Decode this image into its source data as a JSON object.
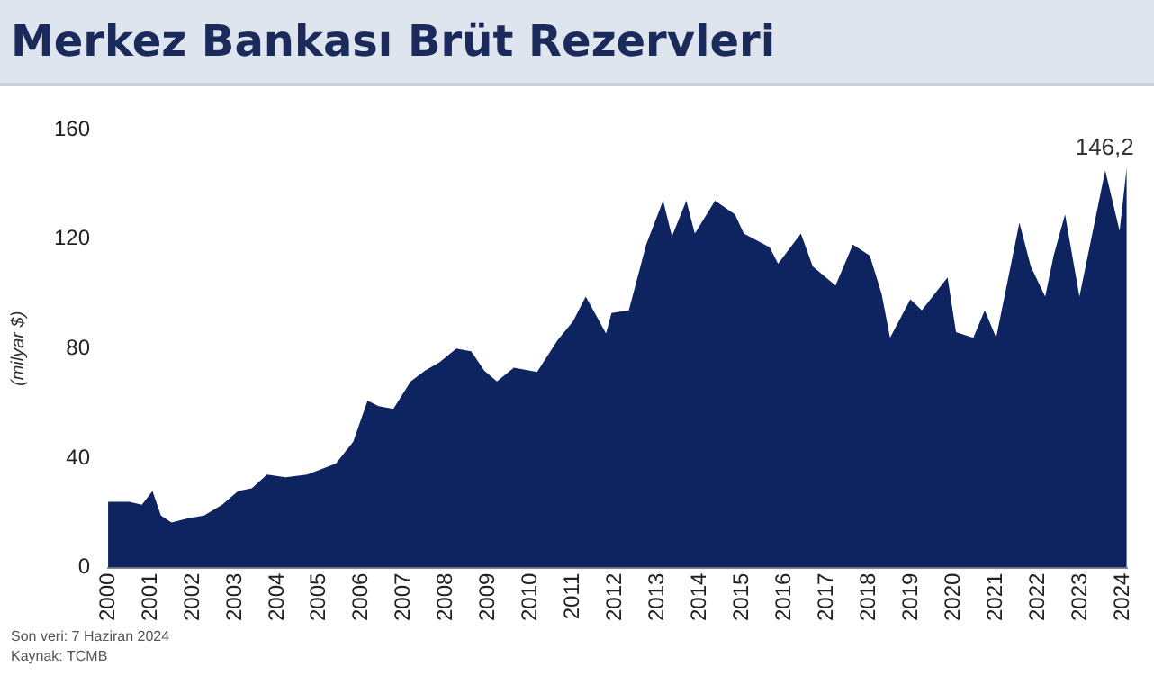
{
  "chart_data": {
    "type": "area",
    "title": "Merkez Bankası Brüt Rezervleri",
    "ylabel": "(milyar $)",
    "x": [
      2000.0,
      2000.5,
      2000.8,
      2001.05,
      2001.25,
      2001.5,
      2001.9,
      2002.27,
      2002.7,
      2003.08,
      2003.4,
      2003.76,
      2004.2,
      2004.71,
      2005.39,
      2005.8,
      2006.14,
      2006.4,
      2006.75,
      2007.16,
      2007.5,
      2007.84,
      2008.24,
      2008.59,
      2008.9,
      2009.2,
      2009.6,
      2010.15,
      2010.63,
      2011.0,
      2011.3,
      2011.55,
      2011.78,
      2011.91,
      2012.32,
      2012.73,
      2013.13,
      2013.34,
      2013.68,
      2013.88,
      2014.36,
      2014.83,
      2015.04,
      2015.65,
      2015.85,
      2016.39,
      2016.67,
      2017.21,
      2017.62,
      2018.02,
      2018.3,
      2018.5,
      2018.98,
      2019.25,
      2019.86,
      2020.06,
      2020.47,
      2020.74,
      2021.01,
      2021.56,
      2021.83,
      2022.17,
      2022.37,
      2022.64,
      2022.98,
      2023.59,
      2023.93,
      2024.1
    ],
    "series": [
      {
        "color": "#0d2461",
        "values": [
          24,
          24,
          23,
          28,
          19,
          16.5,
          18,
          19,
          23,
          28,
          29,
          34,
          33,
          34,
          38,
          46,
          61,
          59,
          58,
          68,
          72,
          75,
          80,
          79,
          72,
          68,
          73,
          71.5,
          83,
          90,
          99,
          92,
          85.5,
          93,
          94,
          118,
          134,
          121,
          134,
          122,
          134,
          129,
          122,
          117,
          111,
          122,
          110,
          103,
          118,
          114,
          100,
          84,
          98,
          94,
          106,
          86,
          84,
          94,
          84,
          126,
          110,
          99,
          114,
          129,
          99,
          145,
          123,
          146.2
        ]
      }
    ],
    "xlim": [
      2000,
      2024.1
    ],
    "xticks": [
      2000,
      2001,
      2002,
      2003,
      2004,
      2005,
      2006,
      2007,
      2008,
      2009,
      2010,
      2011,
      2012,
      2013,
      2014,
      2015,
      2016,
      2017,
      2018,
      2019,
      2020,
      2021,
      2022,
      2023,
      2024
    ],
    "ylim": [
      0,
      160
    ],
    "yticks": [
      0,
      40,
      80,
      120,
      160
    ],
    "grid": false,
    "legend": false,
    "annotations": [
      {
        "text": "146,2",
        "x": 2024.1,
        "y": 146.2
      },
      "Son veri: 7 Haziran 2024",
      "Kaynak: TCMB"
    ]
  }
}
